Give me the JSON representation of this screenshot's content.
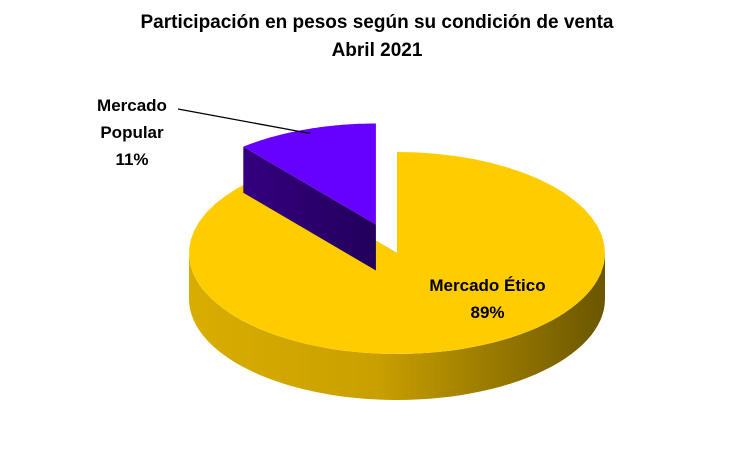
{
  "chart_data": {
    "type": "pie",
    "title": "Participación en pesos según su condición de venta",
    "subtitle": "Abril 2021",
    "categories": [
      "Mercado Ético",
      "Mercado Popular"
    ],
    "values": [
      89,
      11
    ],
    "value_labels": [
      "89%",
      "11%"
    ],
    "colors": [
      "#ffcc00",
      "#6600ff"
    ],
    "exploded": [
      false,
      true
    ]
  }
}
